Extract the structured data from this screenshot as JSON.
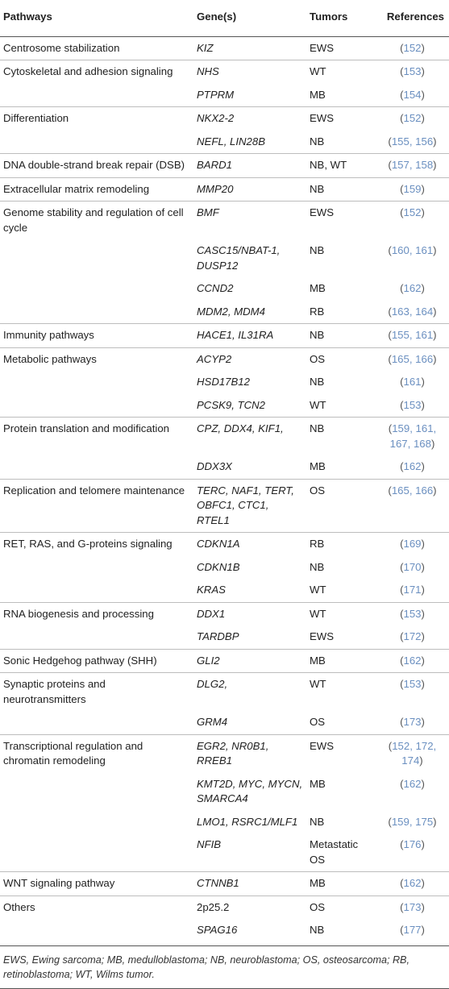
{
  "headers": {
    "pathways": "Pathways",
    "genes": "Gene(s)",
    "tumors": "Tumors",
    "references": "References"
  },
  "rows": [
    {
      "pathway": "Centrosome stabilization",
      "genes": "KIZ",
      "tumors": "EWS",
      "refs": "152"
    },
    {
      "pathway": "Cytoskeletal and adhesion signaling",
      "genes": "NHS",
      "tumors": "WT",
      "refs": "153"
    },
    {
      "pathway": "",
      "genes": "PTPRM",
      "tumors": "MB",
      "refs": "154"
    },
    {
      "pathway": "Differentiation",
      "genes": "NKX2-2",
      "tumors": "EWS",
      "refs": "152"
    },
    {
      "pathway": "",
      "genes": "NEFL, LIN28B",
      "tumors": "NB",
      "refs": "155, 156"
    },
    {
      "pathway": "DNA double-strand break repair (DSB)",
      "genes": "BARD1",
      "tumors": "NB, WT",
      "refs": "157, 158"
    },
    {
      "pathway": "Extracellular matrix remodeling",
      "genes": "MMP20",
      "tumors": "NB",
      "refs": "159"
    },
    {
      "pathway": "Genome stability and regulation of cell cycle",
      "genes": "BMF",
      "tumors": "EWS",
      "refs": "152"
    },
    {
      "pathway": "",
      "genes": "CASC15/NBAT-1, DUSP12",
      "tumors": "NB",
      "refs": "160, 161"
    },
    {
      "pathway": "",
      "genes": "CCND2",
      "tumors": "MB",
      "refs": "162"
    },
    {
      "pathway": "",
      "genes": "MDM2, MDM4",
      "tumors": "RB",
      "refs": "163, 164"
    },
    {
      "pathway": "Immunity pathways",
      "genes": "HACE1, IL31RA",
      "tumors": "NB",
      "refs": "155, 161"
    },
    {
      "pathway": "Metabolic pathways",
      "genes": "ACYP2",
      "tumors": "OS",
      "refs": "165, 166"
    },
    {
      "pathway": "",
      "genes": "HSD17B12",
      "tumors": "NB",
      "refs": "161"
    },
    {
      "pathway": "",
      "genes": "PCSK9, TCN2",
      "tumors": "WT",
      "refs": "153"
    },
    {
      "pathway": "Protein translation and modification",
      "genes": "CPZ, DDX4, KIF1,",
      "tumors": "NB",
      "refs": "159, 161, 167, 168"
    },
    {
      "pathway": "",
      "genes": "DDX3X",
      "tumors": "MB",
      "refs": "162"
    },
    {
      "pathway": "Replication and telomere maintenance",
      "genes": "TERC, NAF1, TERT, OBFC1, CTC1, RTEL1",
      "tumors": "OS",
      "refs": "165, 166"
    },
    {
      "pathway": "RET, RAS, and G-proteins signaling",
      "genes": "CDKN1A",
      "tumors": "RB",
      "refs": "169"
    },
    {
      "pathway": "",
      "genes": "CDKN1B",
      "tumors": "NB",
      "refs": "170"
    },
    {
      "pathway": "",
      "genes": "KRAS",
      "tumors": "WT",
      "refs": "171"
    },
    {
      "pathway": "RNA biogenesis and processing",
      "genes": "DDX1",
      "tumors": "WT",
      "refs": "153"
    },
    {
      "pathway": "",
      "genes": "TARDBP",
      "tumors": "EWS",
      "refs": "172"
    },
    {
      "pathway": "Sonic Hedgehog pathway (SHH)",
      "genes": "GLI2",
      "tumors": "MB",
      "refs": "162"
    },
    {
      "pathway": "Synaptic proteins and neurotransmitters",
      "genes": "DLG2,",
      "tumors": "WT",
      "refs": "153"
    },
    {
      "pathway": "",
      "genes": "GRM4",
      "tumors": "OS",
      "refs": "173"
    },
    {
      "pathway": "Transcriptional regulation and chromatin remodeling",
      "genes": "EGR2, NR0B1, RREB1",
      "tumors": "EWS",
      "refs": "152, 172, 174"
    },
    {
      "pathway": "",
      "genes": "KMT2D, MYC, MYCN, SMARCA4",
      "tumors": "MB",
      "refs": "162"
    },
    {
      "pathway": "",
      "genes": "LMO1, RSRC1/MLF1",
      "tumors": "NB",
      "refs": "159, 175"
    },
    {
      "pathway": "",
      "genes": "NFIB",
      "tumors": "Metastatic OS",
      "refs": "176"
    },
    {
      "pathway": "WNT signaling pathway",
      "genes": "CTNNB1",
      "tumors": "MB",
      "refs": "162"
    },
    {
      "pathway": "Others",
      "genes": "2p25.2",
      "tumors": "OS",
      "refs": "173",
      "upright": true
    },
    {
      "pathway": "",
      "genes": "SPAG16",
      "tumors": "NB",
      "refs": "177"
    }
  ],
  "footnote": "EWS, Ewing sarcoma; MB, medulloblastoma; NB, neuroblastoma; OS, osteosarcoma; RB, retinoblastoma; WT, Wilms tumor."
}
